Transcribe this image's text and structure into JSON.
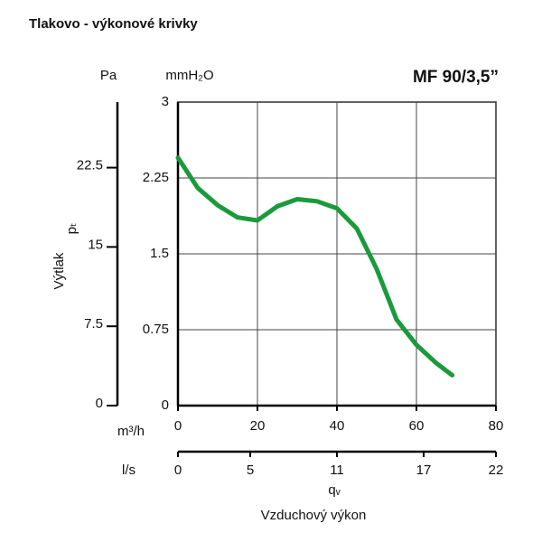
{
  "chart_data": {
    "type": "line",
    "title": "Tlakovo - výkonové krivky",
    "model": "MF 90/3,5”",
    "y_label": "Výtlak",
    "y_symbol": "pₜ",
    "y_unit": "mmH₂O",
    "y2_unit": "Pa",
    "x_unit": "m³/h",
    "x2_unit": "l/s",
    "x_symbol": "qᵥ",
    "x_label": "Vzduchový výkon",
    "x": [
      0,
      5,
      10,
      15,
      20,
      25,
      30,
      35,
      40,
      45,
      50,
      55,
      60,
      65,
      69
    ],
    "series": [
      {
        "color": "#1a9a3c",
        "values": [
          2.45,
          2.15,
          1.98,
          1.86,
          1.83,
          1.97,
          2.04,
          2.02,
          1.95,
          1.75,
          1.35,
          0.85,
          0.6,
          0.42,
          0.3
        ]
      }
    ],
    "xlim": [
      0,
      80
    ],
    "xticks": [
      0,
      20,
      40,
      60,
      80
    ],
    "x2lim": [
      0,
      22
    ],
    "x2ticks": [
      0,
      5,
      11,
      17,
      22
    ],
    "ylim": [
      0,
      3
    ],
    "yticks": [
      0,
      0.75,
      1.5,
      2.25,
      3
    ],
    "y2lim": [
      0,
      28.7
    ],
    "y2ticks": [
      0,
      7.5,
      15,
      22.5
    ],
    "grid": true
  }
}
